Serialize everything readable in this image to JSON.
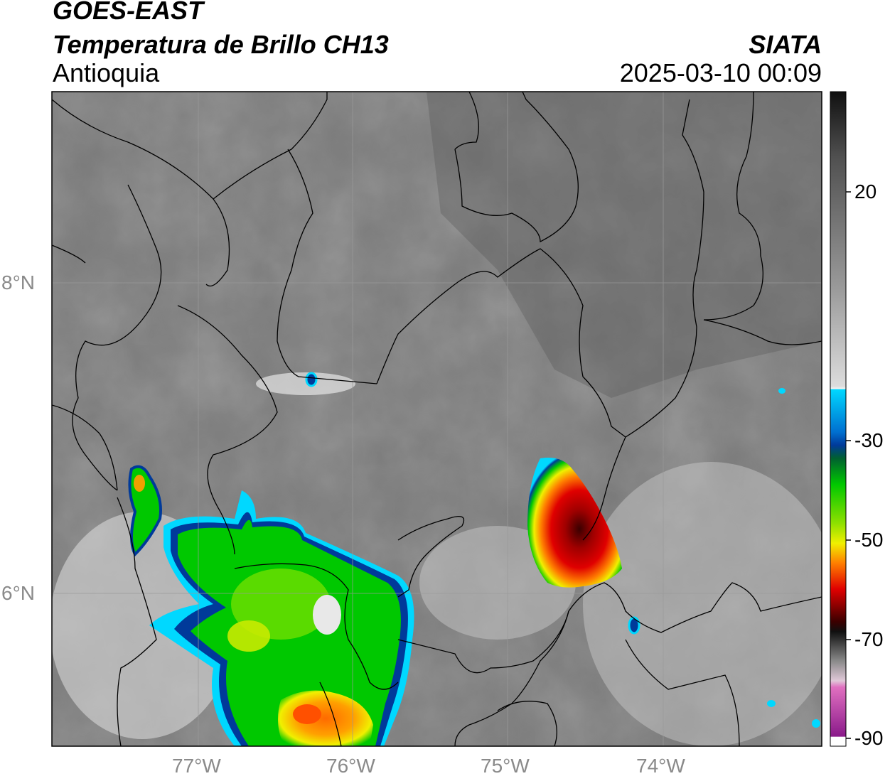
{
  "header": {
    "satellite": "GOES-EAST",
    "product": "Temperatura de Brillo CH13",
    "region": "Antioquia",
    "organization": "SIATA",
    "datetime": "2025-03-10 00:09"
  },
  "axes": {
    "lat_labels": [
      "8°N",
      "6°N"
    ],
    "lon_labels": [
      "77°W",
      "76°W",
      "75°W",
      "74°W"
    ]
  },
  "colorbar": {
    "labels": [
      "20",
      "-30",
      "-50",
      "-70",
      "-90"
    ],
    "colors": {
      "gray_top": "#101010",
      "gray_mid": "#9a9a9a",
      "white": "#f4f4f4",
      "cyan": "#00d8ff",
      "blue": "#003a9a",
      "green": "#00c800",
      "yellow": "#f0f000",
      "orange": "#ff8000",
      "red": "#e00000",
      "dark_red": "#3a0000",
      "pink": "#e070c0",
      "purple": "#8a1a8a"
    }
  }
}
